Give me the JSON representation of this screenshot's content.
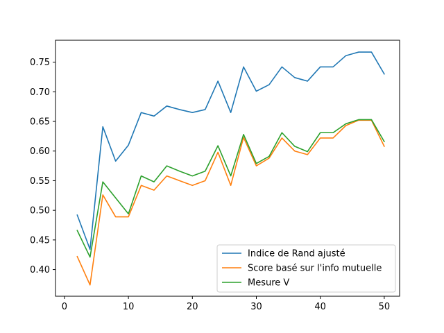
{
  "chart_data": {
    "type": "line",
    "title": "",
    "xlabel": "",
    "ylabel": "",
    "xlim": [
      -1.4,
      52.4
    ],
    "ylim": [
      0.355,
      0.787
    ],
    "xticks": [
      0,
      10,
      20,
      30,
      40,
      50
    ],
    "xtick_labels": [
      "0",
      "10",
      "20",
      "30",
      "40",
      "50"
    ],
    "yticks": [
      0.4,
      0.45,
      0.5,
      0.55,
      0.6,
      0.65,
      0.7,
      0.75
    ],
    "ytick_labels": [
      "0.40",
      "0.45",
      "0.50",
      "0.55",
      "0.60",
      "0.65",
      "0.70",
      "0.75"
    ],
    "grid": false,
    "legend_position": "lower-right",
    "x": [
      2,
      4,
      6,
      8,
      10,
      12,
      14,
      16,
      18,
      20,
      22,
      24,
      26,
      28,
      30,
      32,
      34,
      36,
      38,
      40,
      42,
      44,
      46,
      48,
      50
    ],
    "series": [
      {
        "name": "Indice de Rand ajusté",
        "color": "#1f77b4",
        "values": [
          0.492,
          0.434,
          0.641,
          0.583,
          0.61,
          0.665,
          0.659,
          0.676,
          0.67,
          0.665,
          0.67,
          0.718,
          0.665,
          0.742,
          0.701,
          0.712,
          0.742,
          0.724,
          0.718,
          0.742,
          0.742,
          0.761,
          0.767,
          0.767,
          0.73
        ]
      },
      {
        "name": "Score basé sur l'info mutuelle",
        "color": "#ff7f0e",
        "values": [
          0.422,
          0.374,
          0.526,
          0.489,
          0.489,
          0.542,
          0.534,
          0.558,
          0.55,
          0.542,
          0.55,
          0.598,
          0.542,
          0.623,
          0.575,
          0.588,
          0.622,
          0.6,
          0.594,
          0.622,
          0.622,
          0.643,
          0.652,
          0.652,
          0.608
        ]
      },
      {
        "name": "Mesure V",
        "color": "#2ca02c",
        "values": [
          0.466,
          0.421,
          0.548,
          0.521,
          0.494,
          0.558,
          0.548,
          0.575,
          0.566,
          0.558,
          0.566,
          0.609,
          0.558,
          0.628,
          0.579,
          0.591,
          0.631,
          0.608,
          0.599,
          0.631,
          0.631,
          0.646,
          0.653,
          0.653,
          0.616
        ]
      }
    ]
  }
}
